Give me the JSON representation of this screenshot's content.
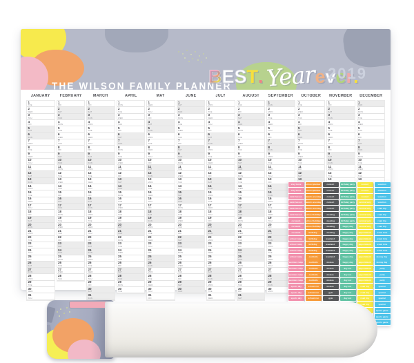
{
  "poster": {
    "title": "THE WILSON FAMILY PLANNER",
    "slogan": {
      "best": [
        {
          "ch": "B",
          "color": "#f2a0ba",
          "style": "multi"
        },
        {
          "ch": "E",
          "color": "#ffffff",
          "style": "outline"
        },
        {
          "ch": "S",
          "color": "#ffffff",
          "style": "outline"
        },
        {
          "ch": "T",
          "color": "#f6df3e",
          "style": "solid"
        },
        {
          "ch": ".",
          "color": "#ee8585",
          "style": "solid"
        }
      ],
      "script_word": "Year",
      "ever": [
        {
          "ch": "e",
          "color": "#f0b287",
          "style": "solid"
        },
        {
          "ch": "v",
          "color": "#ffffff",
          "style": "outline"
        },
        {
          "ch": "e",
          "color": "#b2d47c",
          "style": "solid"
        },
        {
          "ch": "r",
          "color": "#f2a8a8",
          "style": "solid"
        },
        {
          "ch": ".",
          "color": "#f6df3e",
          "style": "solid"
        }
      ],
      "year": "2019"
    },
    "header_bg": "#b6bac9"
  },
  "calendar": {
    "year": 2019,
    "day_abbrs": [
      "mon",
      "tue",
      "wed",
      "thu",
      "fri",
      "sat",
      "sun"
    ],
    "weekend_color": "#ececec",
    "months": [
      {
        "label": "JANUARY",
        "days": 31,
        "first_dow": 2
      },
      {
        "label": "FEBRUARY",
        "days": 28,
        "first_dow": 5
      },
      {
        "label": "MARCH",
        "days": 31,
        "first_dow": 5
      },
      {
        "label": "APRIL",
        "days": 30,
        "first_dow": 1
      },
      {
        "label": "MAY",
        "days": 31,
        "first_dow": 3
      },
      {
        "label": "JUNE",
        "days": 30,
        "first_dow": 6
      },
      {
        "label": "JULY",
        "days": 31,
        "first_dow": 1
      },
      {
        "label": "AUGUST",
        "days": 31,
        "first_dow": 4
      },
      {
        "label": "SEPTEMBER",
        "days": 30,
        "first_dow": 7
      },
      {
        "label": "OCTOBER",
        "days": 31,
        "first_dow": 2
      },
      {
        "label": "NOVEMBER",
        "days": 30,
        "first_dow": 5
      },
      {
        "label": "DECEMBER",
        "days": 31,
        "first_dow": 7
      }
    ]
  },
  "stickers": {
    "sheets": [
      {
        "name": "pink-sheet",
        "color": "#f291ad",
        "labels": [
          "stay home",
          "stay home",
          "swim lesson",
          "swim lesson",
          "swim lesson",
          "swim lesson",
          "car wash",
          "car wash",
          "car wash",
          "school camp",
          "school camp",
          "school camp",
          "school camp",
          "summer camp",
          "summer camp",
          "summer camp",
          "summer camp",
          "sports day",
          "sports day",
          "sports day",
          "sports day",
          "sports day"
        ]
      },
      {
        "name": "orange-sheet",
        "color": "#f79b3a",
        "labels": [
          "school planner",
          "school planner",
          "parents evening",
          "parents evening",
          "parents evening",
          "school holidays",
          "school holidays",
          "school holidays",
          "birthday",
          "birthday",
          "birthday",
          "birthday",
          "cocktails",
          "cocktails",
          "cocktails",
          "cocktails",
          "cocktails",
          "school run",
          "school run",
          "school run",
          "school run",
          "school run"
        ]
      },
      {
        "name": "gray-sheet",
        "color": "#57585a",
        "labels": [
          "concert",
          "concert",
          "concert",
          "concert",
          "concert",
          "meeting",
          "meeting",
          "meeting",
          "meeting",
          "weekend",
          "weekend",
          "weekend",
          "weekend",
          "movies",
          "movies",
          "movies",
          "movies",
          "movies",
          "gym",
          "gym",
          "gym",
          "gym"
        ]
      },
      {
        "name": "teal-sheet",
        "color": "#62c3a4",
        "labels": [
          "birthday party",
          "birthday party",
          "birthday party",
          "birthday party",
          "birthday party",
          "birthday party",
          "birthday party",
          "happy day",
          "happy day",
          "happy day",
          "happy day",
          "happy day",
          "happy day",
          "happy day",
          "day out",
          "day out",
          "day out",
          "day out",
          "day out",
          "day out",
          "day out",
          "day out"
        ]
      },
      {
        "name": "yellow-sheet",
        "color": "#f8e943",
        "labels": [
          "concert",
          "concert",
          "concert",
          "anniversary",
          "anniversary",
          "anniversary",
          "anniversary",
          "anniversary",
          "appointment",
          "appointment",
          "appointment",
          "appointment",
          "appointment",
          "appointment",
          "appointment",
          "appointment",
          "appointment",
          "road trip",
          "road trip",
          "road trip",
          "road trip",
          "road trip"
        ]
      },
      {
        "name": "blue-sheet",
        "color": "#4dc3ea",
        "labels": [
          "vacation",
          "vacation",
          "vacation",
          "vacation",
          "road trip",
          "road trip",
          "road trip",
          "road trip",
          "exam time",
          "exam time",
          "exam time",
          "exam time",
          "money day",
          "money day",
          "party",
          "party",
          "party",
          "special",
          "special",
          "special",
          "special",
          "sports game",
          "sports game",
          "sports game"
        ]
      }
    ]
  }
}
